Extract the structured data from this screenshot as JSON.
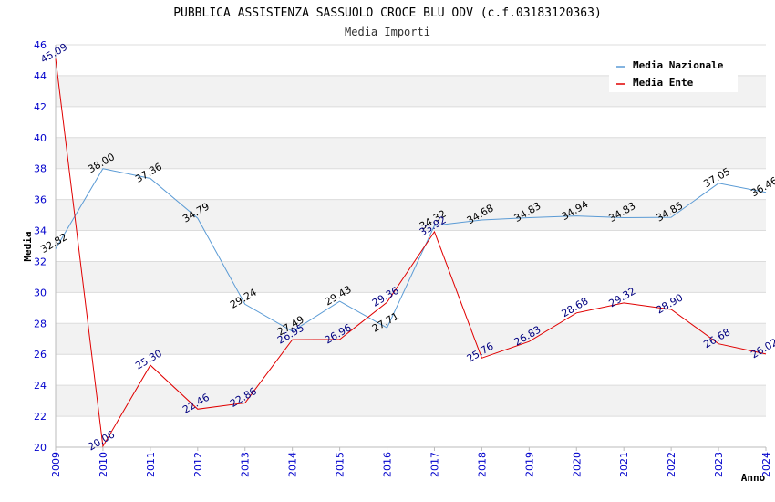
{
  "chart_data": {
    "type": "line",
    "title": "PUBBLICA ASSISTENZA SASSUOLO CROCE BLU ODV (c.f.03183120363)",
    "subtitle": "Media Importi",
    "xlabel": "Anno",
    "ylabel": "Media",
    "ylim": [
      20,
      46
    ],
    "ytick_step": 2,
    "grid": true,
    "legend_position": "top-right",
    "categories": [
      "2009",
      "2010",
      "2011",
      "2012",
      "2013",
      "2014",
      "2015",
      "2016",
      "2017",
      "2018",
      "2019",
      "2020",
      "2021",
      "2022",
      "2023",
      "2024"
    ],
    "series": [
      {
        "name": "Media Nazionale",
        "color": "#5b9bd5",
        "label_color": "#000000",
        "values": [
          32.82,
          38.0,
          37.36,
          34.79,
          29.24,
          27.49,
          29.43,
          27.71,
          34.32,
          34.68,
          34.83,
          34.94,
          34.83,
          34.85,
          37.05,
          36.46
        ],
        "labels": [
          "32.82",
          "38.00",
          "37.36",
          "34.79",
          "29.24",
          "27.49",
          "29.43",
          "27.71",
          "34.32",
          "34.68",
          "34.83",
          "34.94",
          "34.83",
          "34.85",
          "37.05",
          "36.46"
        ]
      },
      {
        "name": "Media Ente",
        "color": "#e00000",
        "label_color": "#000080",
        "values": [
          45.09,
          20.06,
          25.3,
          22.46,
          22.86,
          26.95,
          26.96,
          29.36,
          33.92,
          25.76,
          26.83,
          28.68,
          29.32,
          28.9,
          26.68,
          26.02
        ],
        "labels": [
          "45.09",
          "20.06",
          "25.30",
          "22.46",
          "22.86",
          "26.95",
          "26.96",
          "29.36",
          "33.92",
          "25.76",
          "26.83",
          "28.68",
          "29.32",
          "28.90",
          "26.68",
          "26.02"
        ]
      }
    ]
  }
}
